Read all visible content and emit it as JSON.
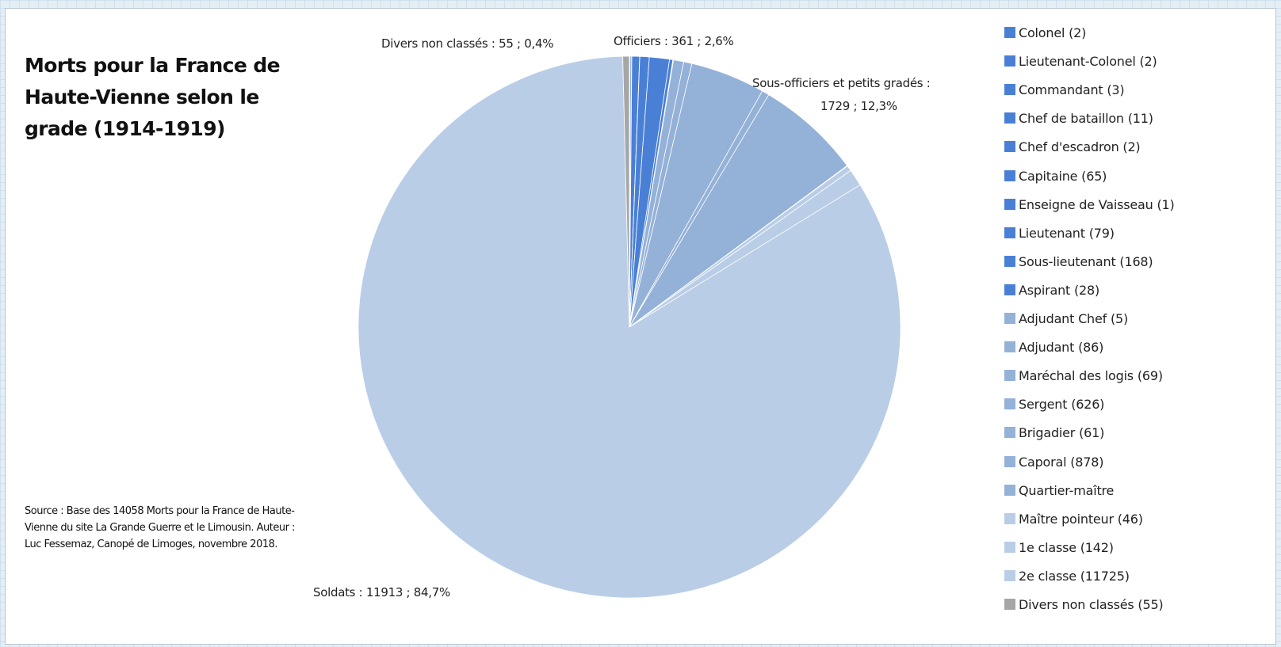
{
  "chart_data": {
    "type": "pie",
    "title": "Morts pour la France de Haute-Vienne selon le grade (1914-1919)",
    "source": "Source : Base des 14058 Morts pour la France de Haute-Vienne du site La Grande Guerre et le Limousin. Auteur : Luc Fessemaz, Canopé de Limoges, novembre 2018.",
    "slices": [
      {
        "name": "Colonel (2)",
        "value": 2,
        "color": "#4a7fd6"
      },
      {
        "name": "Lieutenant-Colonel (2)",
        "value": 2,
        "color": "#4a7fd6"
      },
      {
        "name": "Commandant  (3)",
        "value": 3,
        "color": "#4a7fd6"
      },
      {
        "name": "Chef de bataillon  (11)",
        "value": 11,
        "color": "#4a7fd6"
      },
      {
        "name": "Chef d'escadron (2)",
        "value": 2,
        "color": "#4a7fd6"
      },
      {
        "name": "Capitaine (65)",
        "value": 65,
        "color": "#4a7fd6"
      },
      {
        "name": "Enseigne de Vaisseau  (1)",
        "value": 1,
        "color": "#4a7fd6"
      },
      {
        "name": "Lieutenant (79)",
        "value": 79,
        "color": "#4a7fd6"
      },
      {
        "name": "Sous-lieutenant (168)",
        "value": 168,
        "color": "#4a7fd6"
      },
      {
        "name": "Aspirant (28)",
        "value": 28,
        "color": "#4a7fd6"
      },
      {
        "name": "Adjudant Chef (5)",
        "value": 5,
        "color": "#94b1d8"
      },
      {
        "name": "Adjudant (86)",
        "value": 86,
        "color": "#94b1d8"
      },
      {
        "name": "Maréchal des logis (69)",
        "value": 69,
        "color": "#94b1d8"
      },
      {
        "name": "Sergent (626)",
        "value": 626,
        "color": "#94b1d8"
      },
      {
        "name": "Brigadier (61)",
        "value": 61,
        "color": "#94b1d8"
      },
      {
        "name": "Caporal (878)",
        "value": 878,
        "color": "#94b1d8"
      },
      {
        "name": "Quartier-maître",
        "value": 4,
        "color": "#94b1d8"
      },
      {
        "name": "Maître pointeur (46)",
        "value": 46,
        "color": "#b9cde6"
      },
      {
        "name": "1e classe (142)",
        "value": 142,
        "color": "#b9cde6"
      },
      {
        "name": "2e classe (11725)",
        "value": 11725,
        "color": "#b9cde6"
      },
      {
        "name": "Divers non classés (55)",
        "value": 55,
        "color": "#a6a6a6"
      }
    ],
    "group_labels": {
      "divers": "Divers non classés : 55 ; 0,4%",
      "officiers": "Officiers : 361 ; 2,6%",
      "sous_officiers_line1": "Sous-officiers et petits gradés :",
      "sous_officiers_line2": "1729 ; 12,3%",
      "soldats": "Soldats : 11913 ; 84,7%"
    },
    "legend_position": "right"
  }
}
